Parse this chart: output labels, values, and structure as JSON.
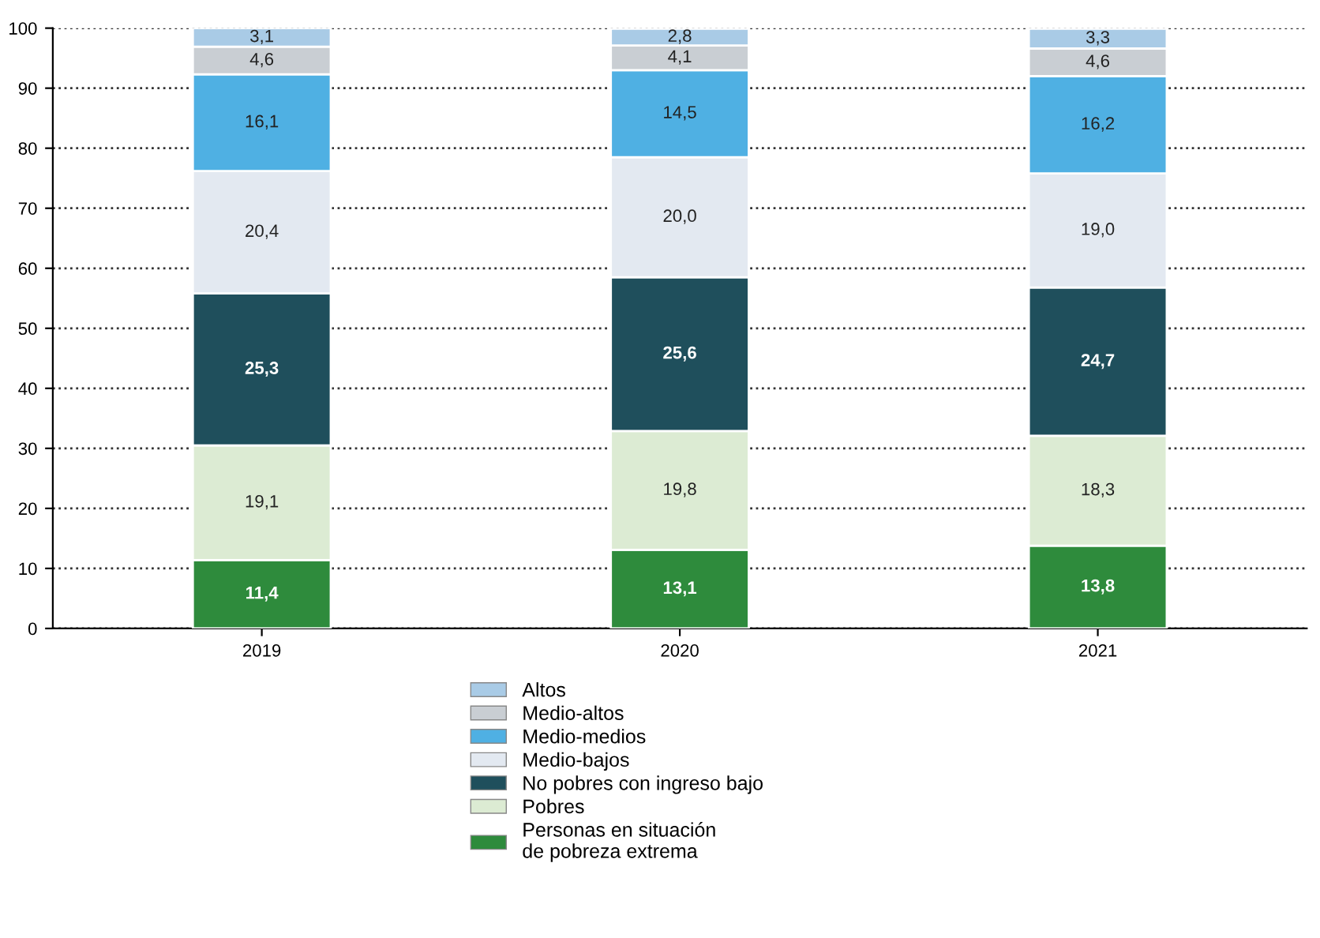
{
  "chart_data": {
    "type": "bar",
    "stacked": true,
    "categories": [
      "2019",
      "2020",
      "2021"
    ],
    "ylim": [
      0,
      100
    ],
    "yticks": [
      0,
      10,
      20,
      30,
      40,
      50,
      60,
      70,
      80,
      90,
      100
    ],
    "grid": "y",
    "line_style": "dotted",
    "legend": "bottom",
    "series": [
      {
        "name": "Personas en situación\nde pobreza extrema",
        "color": "#2e8b3c",
        "values": [
          11.4,
          13.1,
          13.8
        ],
        "value_labels": [
          "11,4",
          "13,1",
          "13,8"
        ]
      },
      {
        "name": "Pobres",
        "color": "#dcebd3",
        "values": [
          19.1,
          19.8,
          18.3
        ],
        "value_labels": [
          "19,1",
          "19,8",
          "18,3"
        ]
      },
      {
        "name": "No pobres con ingreso bajo",
        "color": "#1f4f5c",
        "values": [
          25.3,
          25.6,
          24.7
        ],
        "value_labels": [
          "25,3",
          "25,6",
          "24,7"
        ]
      },
      {
        "name": "Medio-bajos",
        "color": "#e3e9f1",
        "values": [
          20.4,
          20.0,
          19.0
        ],
        "value_labels": [
          "20,4",
          "20,0",
          "19,0"
        ]
      },
      {
        "name": "Medio-medios",
        "color": "#4fb0e3",
        "values": [
          16.1,
          14.5,
          16.2
        ],
        "value_labels": [
          "16,1",
          "14,5",
          "16,2"
        ]
      },
      {
        "name": "Medio-altos",
        "color": "#c9ced3",
        "values": [
          4.6,
          4.1,
          4.6
        ],
        "value_labels": [
          "4,6",
          "4,1",
          "4,6"
        ]
      },
      {
        "name": "Altos",
        "color": "#a9cbe6",
        "values": [
          3.1,
          2.8,
          3.3
        ],
        "value_labels": [
          "3,1",
          "2,8",
          "3,3"
        ]
      }
    ]
  }
}
